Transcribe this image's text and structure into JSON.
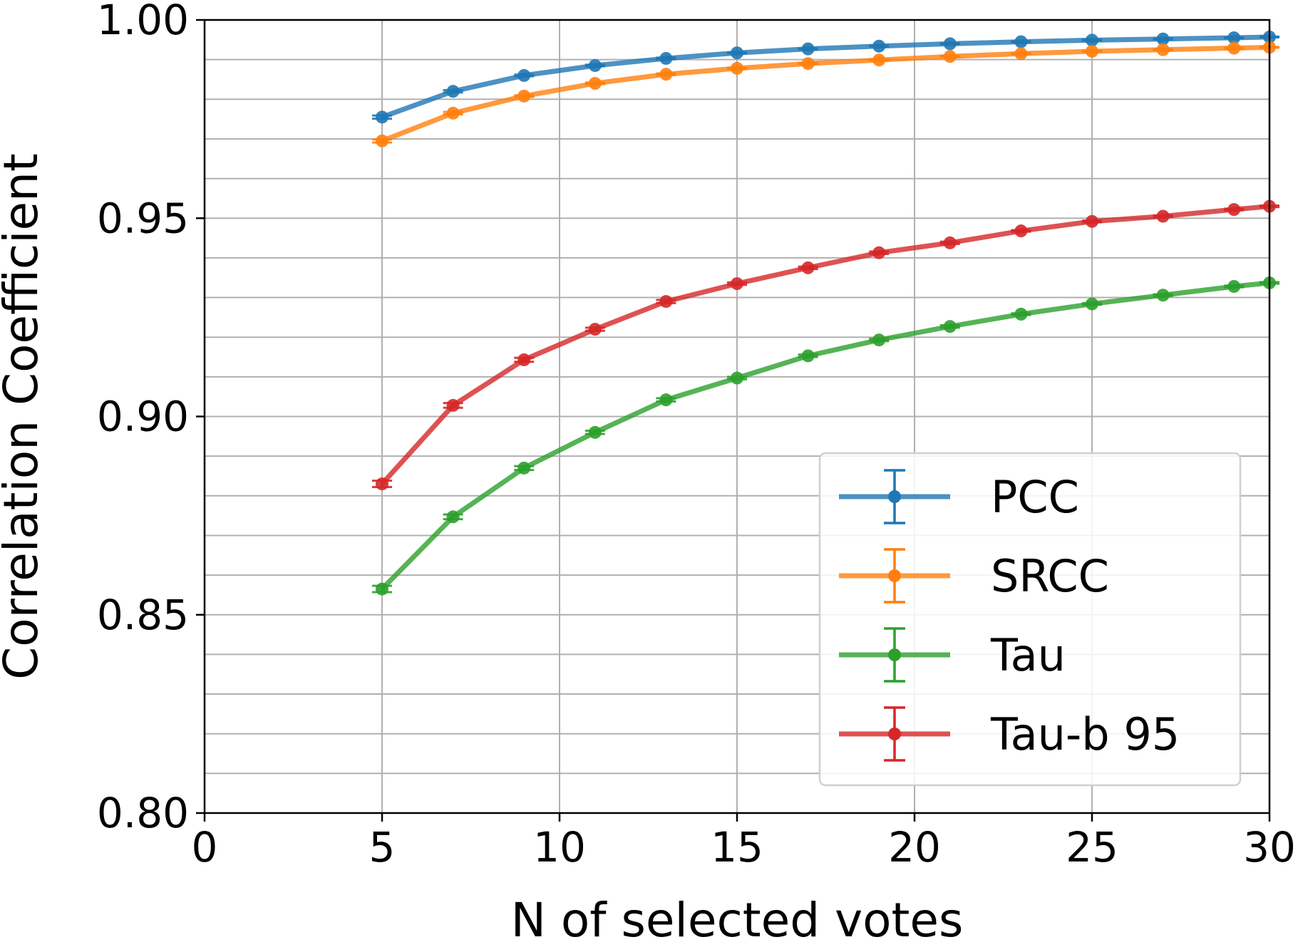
{
  "chart_data": {
    "type": "line",
    "title": "",
    "xlabel": "N of selected votes",
    "ylabel": "Correlation Coefficient",
    "xlim": [
      0,
      30
    ],
    "ylim": [
      0.8,
      1.0
    ],
    "xticks": [
      0,
      5,
      10,
      15,
      20,
      25,
      30
    ],
    "xtick_labels": [
      "0",
      "5",
      "10",
      "15",
      "20",
      "25",
      "30"
    ],
    "yticks": [
      0.8,
      0.85,
      0.9,
      0.95,
      1.0
    ],
    "ytick_labels": [
      "0.80",
      "0.85",
      "0.90",
      "0.95",
      "1.00"
    ],
    "y_minor_step": 0.01,
    "grid": true,
    "legend_position": "lower-right",
    "x": [
      5,
      7,
      9,
      11,
      13,
      15,
      17,
      19,
      21,
      23,
      25,
      27,
      29,
      30
    ],
    "series": [
      {
        "name": "PCC",
        "color": "#1f77b4",
        "values": [
          0.9755,
          0.982,
          0.986,
          0.9885,
          0.9903,
          0.9917,
          0.9927,
          0.9934,
          0.994,
          0.9945,
          0.9949,
          0.9952,
          0.9955,
          0.9957
        ],
        "errors": [
          0.0004,
          0.0003,
          0.0002,
          0.0002,
          0.0002,
          0.0001,
          0.0001,
          0.0001,
          0.0001,
          0.0001,
          0.0001,
          0.0001,
          0.0001,
          0.0001
        ]
      },
      {
        "name": "SRCC",
        "color": "#ff7f0e",
        "values": [
          0.9695,
          0.9765,
          0.9808,
          0.984,
          0.9863,
          0.9878,
          0.989,
          0.9899,
          0.9908,
          0.9915,
          0.9921,
          0.9925,
          0.9929,
          0.9931
        ],
        "errors": [
          0.0004,
          0.0003,
          0.0002,
          0.0002,
          0.0002,
          0.0001,
          0.0001,
          0.0001,
          0.0001,
          0.0001,
          0.0001,
          0.0001,
          0.0001,
          0.0001
        ]
      },
      {
        "name": "Tau",
        "color": "#2ca02c",
        "values": [
          0.8565,
          0.8747,
          0.887,
          0.896,
          0.9042,
          0.9097,
          0.9153,
          0.9193,
          0.9227,
          0.9258,
          0.9284,
          0.9306,
          0.9328,
          0.9337
        ],
        "errors": [
          0.0008,
          0.0006,
          0.0005,
          0.0004,
          0.0004,
          0.0003,
          0.0003,
          0.0003,
          0.0003,
          0.0002,
          0.0002,
          0.0002,
          0.0002,
          0.0002
        ]
      },
      {
        "name": "Tau-b 95",
        "color": "#d62728",
        "values": [
          0.883,
          0.9028,
          0.9143,
          0.922,
          0.929,
          0.9335,
          0.9375,
          0.9413,
          0.9438,
          0.9468,
          0.9492,
          0.9505,
          0.9522,
          0.953
        ],
        "errors": [
          0.0008,
          0.0006,
          0.0005,
          0.0004,
          0.0004,
          0.0003,
          0.0003,
          0.0003,
          0.0003,
          0.0002,
          0.0002,
          0.0002,
          0.0002,
          0.0002
        ]
      }
    ]
  }
}
